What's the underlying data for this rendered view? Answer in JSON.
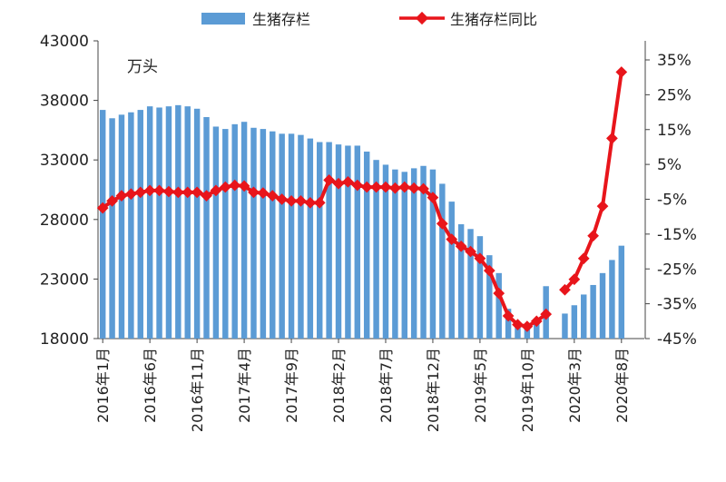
{
  "chart_data": {
    "type": "bar+line",
    "unit_label": "万头",
    "legend": [
      {
        "name": "生猪存栏",
        "color": "#5b9bd5",
        "kind": "bar"
      },
      {
        "name": "生猪存栏同比",
        "color": "#e8151b",
        "kind": "line"
      }
    ],
    "y_left": {
      "min": 18000,
      "max": 43000,
      "ticks": [
        "18000",
        "23000",
        "28000",
        "33000",
        "38000",
        "43000"
      ]
    },
    "y_right": {
      "min": -45,
      "max": 40,
      "ticks": [
        "-45%",
        "-35%",
        "-25%",
        "-15%",
        "-5%",
        "5%",
        "15%",
        "25%",
        "35%"
      ]
    },
    "x_tick_labels": [
      "2016年1月",
      "2016年6月",
      "2016年11月",
      "2017年4月",
      "2017年9月",
      "2018年2月",
      "2018年7月",
      "2018年12月",
      "2019年5月",
      "2019年10月",
      "2020年3月",
      "2020年8月"
    ],
    "x_tick_index": [
      0,
      5,
      10,
      15,
      20,
      25,
      30,
      35,
      40,
      45,
      50,
      55
    ],
    "months": [
      "2016-01",
      "2016-02",
      "2016-03",
      "2016-04",
      "2016-05",
      "2016-06",
      "2016-07",
      "2016-08",
      "2016-09",
      "2016-10",
      "2016-11",
      "2016-12",
      "2017-01",
      "2017-02",
      "2017-03",
      "2017-04",
      "2017-05",
      "2017-06",
      "2017-07",
      "2017-08",
      "2017-09",
      "2017-10",
      "2017-11",
      "2017-12",
      "2018-01",
      "2018-02",
      "2018-03",
      "2018-04",
      "2018-05",
      "2018-06",
      "2018-07",
      "2018-08",
      "2018-09",
      "2018-10",
      "2018-11",
      "2018-12",
      "2019-01",
      "2019-02",
      "2019-03",
      "2019-04",
      "2019-05",
      "2019-06",
      "2019-07",
      "2019-08",
      "2019-09",
      "2019-10",
      "2019-11",
      "2019-12",
      "2020-01",
      "2020-02",
      "2020-03",
      "2020-04",
      "2020-05",
      "2020-06",
      "2020-07",
      "2020-08"
    ],
    "inventory": [
      37200,
      36500,
      36800,
      37000,
      37200,
      37500,
      37400,
      37500,
      37600,
      37500,
      37300,
      36600,
      35800,
      35600,
      36000,
      36200,
      35700,
      35600,
      35400,
      35200,
      35200,
      35100,
      34800,
      34500,
      34500,
      34300,
      34200,
      34200,
      33700,
      33000,
      32600,
      32200,
      32000,
      32300,
      32500,
      32200,
      31000,
      29500,
      27600,
      27200,
      26600,
      25000,
      23500,
      20500,
      19300,
      19000,
      19300,
      22400,
      null,
      20100,
      20800,
      21700,
      22500,
      23500,
      24600,
      25800
    ],
    "yoy_pct": [
      -7.5,
      -5.5,
      -4.0,
      -3.5,
      -3.0,
      -2.5,
      -2.5,
      -2.8,
      -3.0,
      -3.0,
      -3.0,
      -4.0,
      -2.5,
      -1.5,
      -1.0,
      -1.2,
      -3.0,
      -3.2,
      -4.0,
      -5.0,
      -5.5,
      -5.5,
      -6.0,
      -6.0,
      0.5,
      -0.5,
      0.0,
      -1.0,
      -1.5,
      -1.5,
      -1.5,
      -1.8,
      -1.5,
      -1.8,
      -2.0,
      -4.5,
      -12.0,
      -16.5,
      -18.5,
      -20.0,
      -22.0,
      -25.5,
      -32.0,
      -38.5,
      -41.0,
      -41.5,
      -40.0,
      -38.0,
      null,
      -31.0,
      -28.0,
      -22.0,
      -15.5,
      -7.0,
      12.5,
      31.5
    ]
  }
}
